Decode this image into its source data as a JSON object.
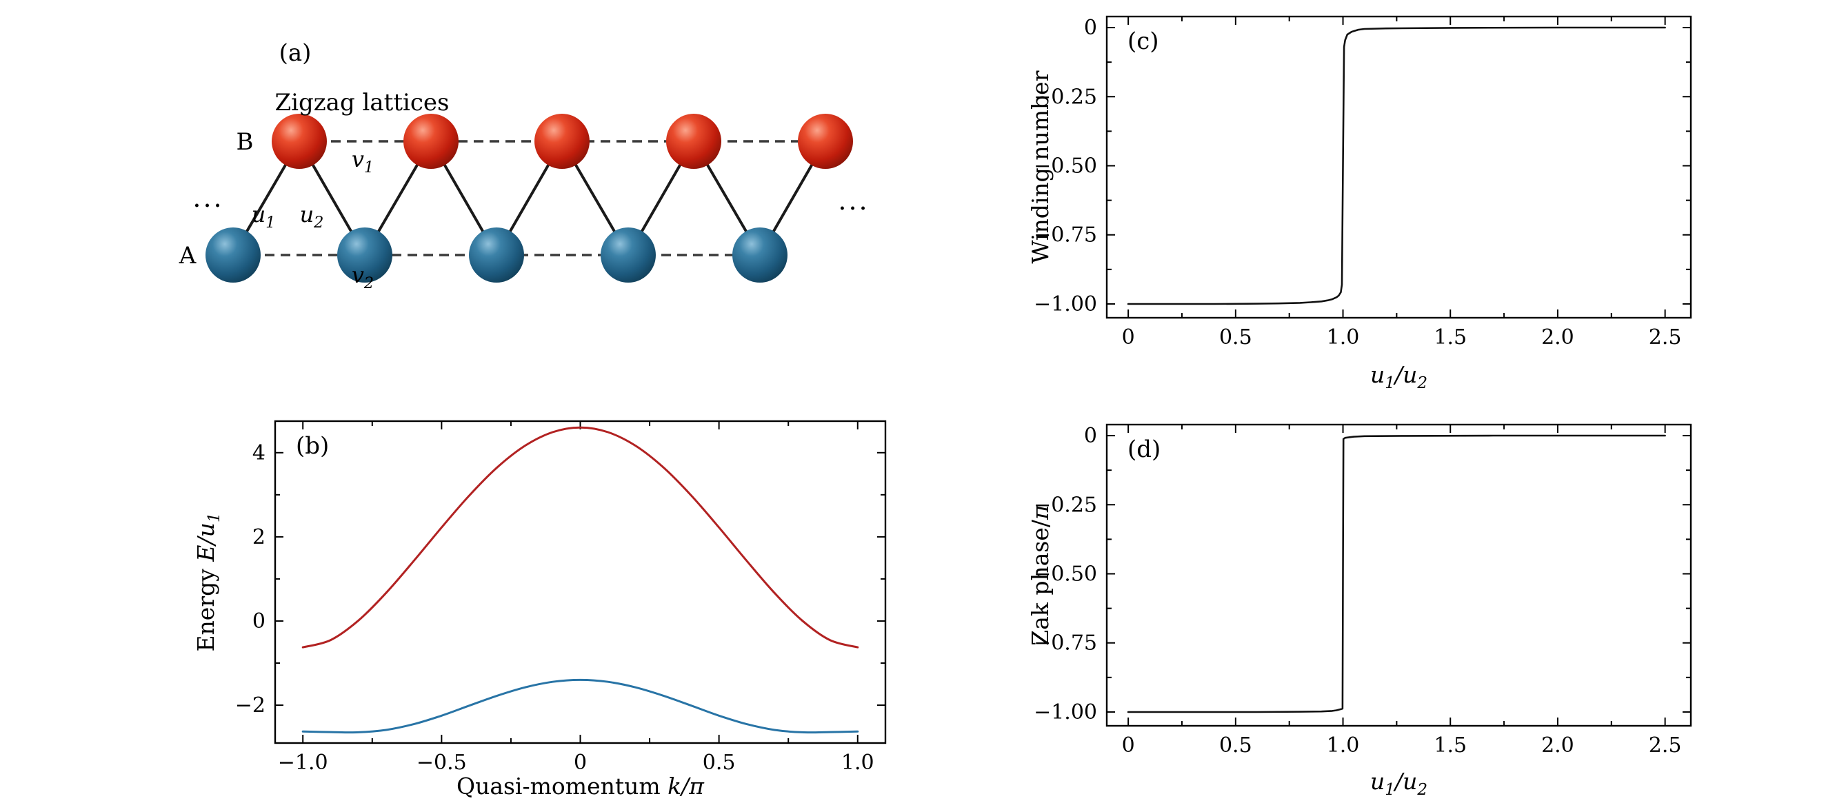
{
  "figure": {
    "background": "#ffffff",
    "panel_a": {
      "label": "(a)",
      "title": "Zigzag lattices",
      "site_b": "B",
      "site_a": "A",
      "ellipsis_left": "...",
      "ellipsis_right": "...",
      "labels": {
        "u1": [
          {
            "t": "u",
            "i": 1
          },
          {
            "t": "1",
            "i": 1,
            "s": 1
          }
        ],
        "u2": [
          {
            "t": "u",
            "i": 1
          },
          {
            "t": "2",
            "i": 1,
            "s": 1
          }
        ],
        "v1": [
          {
            "t": "v",
            "i": 1
          },
          {
            "t": "1",
            "i": 1,
            "s": 1
          }
        ],
        "v2": [
          {
            "t": "v",
            "i": 1
          },
          {
            "t": "2",
            "i": 1,
            "s": 1
          }
        ]
      },
      "colors": {
        "site_b": "#cf2413",
        "site_a": "#1f618d",
        "solid_bond": "#1a1a1a",
        "dashed_bond": "#3a3a3a"
      }
    }
  },
  "chart_data": [
    {
      "id": "band",
      "type": "line",
      "panel_label": "(b)",
      "xlabel": [
        {
          "t": "Quasi-momentum ",
          "i": 0
        },
        {
          "t": "k",
          "i": 1
        },
        {
          "t": "/π",
          "i": 1
        }
      ],
      "ylabel": [
        {
          "t": "Energy ",
          "i": 0
        },
        {
          "t": "E",
          "i": 1
        },
        {
          "t": "/",
          "i": 1
        },
        {
          "t": "u",
          "i": 1
        },
        {
          "t": "1",
          "i": 1,
          "s": 1
        }
      ],
      "xlim": [
        -1.1,
        1.1
      ],
      "ylim": [
        -2.9,
        4.75
      ],
      "xticks": {
        "values": [
          -1.0,
          -0.5,
          0,
          0.5,
          1.0
        ],
        "labels": [
          "−1.0",
          "−0.5",
          "0",
          "0.5",
          "1.0"
        ]
      },
      "yticks": {
        "values": [
          -2,
          0,
          2,
          4
        ],
        "labels": [
          "−2",
          "0",
          "2",
          "4"
        ]
      },
      "grid": false,
      "legend": "none",
      "x": [
        -1,
        -0.9,
        -0.8,
        -0.7,
        -0.6,
        -0.5,
        -0.4,
        -0.3,
        -0.2,
        -0.1,
        0,
        0.1,
        0.2,
        0.3,
        0.4,
        0.5,
        0.6,
        0.7,
        0.8,
        0.9,
        1
      ],
      "series": [
        {
          "name": "upper band",
          "color": "#b22222",
          "smooth": true,
          "width": 3,
          "values": [
            -0.625,
            -0.453,
            0.011,
            0.667,
            1.429,
            2.224,
            2.983,
            3.647,
            4.162,
            4.488,
            4.6,
            4.488,
            4.162,
            3.647,
            2.983,
            2.224,
            1.429,
            0.667,
            0.011,
            -0.453,
            -0.625
          ]
        },
        {
          "name": "lower band",
          "color": "#2874a6",
          "smooth": true,
          "width": 3,
          "values": [
            -2.625,
            -2.64,
            -2.645,
            -2.588,
            -2.451,
            -2.249,
            -2.011,
            -1.776,
            -1.578,
            -1.446,
            -1.4,
            -1.446,
            -1.578,
            -1.776,
            -2.011,
            -2.249,
            -2.451,
            -2.588,
            -2.645,
            -2.64,
            -2.625
          ]
        }
      ]
    },
    {
      "id": "winding",
      "type": "line",
      "panel_label": "(c)",
      "xlabel": [
        {
          "t": "u",
          "i": 1
        },
        {
          "t": "1",
          "i": 1,
          "s": 1
        },
        {
          "t": "/",
          "i": 1
        },
        {
          "t": "u",
          "i": 1
        },
        {
          "t": "2",
          "i": 1,
          "s": 1
        }
      ],
      "ylabel": [
        {
          "t": "Winding number",
          "i": 0
        }
      ],
      "xlim": [
        -0.1,
        2.62
      ],
      "ylim": [
        -1.05,
        0.04
      ],
      "xticks": {
        "values": [
          0,
          0.5,
          1,
          1.5,
          2,
          2.5
        ],
        "labels": [
          "0",
          "0.5",
          "1.0",
          "1.5",
          "2.0",
          "2.5"
        ]
      },
      "yticks": {
        "values": [
          0,
          -0.25,
          -0.5,
          -0.75,
          -1
        ],
        "labels": [
          "0",
          "−0.25",
          "−0.50",
          "−0.75",
          "−1.00"
        ]
      },
      "grid": false,
      "legend": "none",
      "x": [
        0,
        0.2,
        0.4,
        0.6,
        0.7,
        0.8,
        0.85,
        0.9,
        0.93,
        0.95,
        0.97,
        0.98,
        0.99,
        0.995,
        1,
        1.005,
        1.01,
        1.02,
        1.04,
        1.07,
        1.1,
        1.2,
        1.5,
        2,
        2.5
      ],
      "series": [
        {
          "name": "winding number",
          "color": "#111111",
          "smooth": false,
          "width": 2.6,
          "values": [
            -1,
            -1,
            -1,
            -0.999,
            -0.998,
            -0.996,
            -0.994,
            -0.991,
            -0.987,
            -0.983,
            -0.976,
            -0.97,
            -0.958,
            -0.93,
            -0.5,
            -0.07,
            -0.045,
            -0.025,
            -0.015,
            -0.008,
            -0.005,
            -0.003,
            -0.001,
            0,
            0
          ]
        }
      ]
    },
    {
      "id": "zak",
      "type": "line",
      "panel_label": "(d)",
      "xlabel": [
        {
          "t": "u",
          "i": 1
        },
        {
          "t": "1",
          "i": 1,
          "s": 1
        },
        {
          "t": "/",
          "i": 1
        },
        {
          "t": "u",
          "i": 1
        },
        {
          "t": "2",
          "i": 1,
          "s": 1
        }
      ],
      "ylabel": [
        {
          "t": "Zak phase/",
          "i": 0
        },
        {
          "t": "π",
          "i": 1
        }
      ],
      "xlim": [
        -0.1,
        2.62
      ],
      "ylim": [
        -1.05,
        0.04
      ],
      "xticks": {
        "values": [
          0,
          0.5,
          1,
          1.5,
          2,
          2.5
        ],
        "labels": [
          "0",
          "0.5",
          "1.0",
          "1.5",
          "2.0",
          "2.5"
        ]
      },
      "yticks": {
        "values": [
          0,
          -0.25,
          -0.5,
          -0.75,
          -1
        ],
        "labels": [
          "0",
          "−0.25",
          "−0.50",
          "−0.75",
          "−1.00"
        ]
      },
      "grid": false,
      "legend": "none",
      "x": [
        0,
        0.3,
        0.6,
        0.8,
        0.9,
        0.95,
        0.97,
        0.99,
        0.998,
        1,
        1.002,
        1.01,
        1.05,
        1.1,
        1.3,
        1.7,
        2.1,
        2.5
      ],
      "series": [
        {
          "name": "zak phase",
          "color": "#111111",
          "smooth": false,
          "width": 2.6,
          "values": [
            -1,
            -1,
            -1,
            -0.999,
            -0.998,
            -0.996,
            -0.994,
            -0.99,
            -0.988,
            -0.5,
            -0.012,
            -0.008,
            -0.004,
            -0.002,
            -0.001,
            0,
            0,
            0
          ]
        }
      ]
    }
  ]
}
